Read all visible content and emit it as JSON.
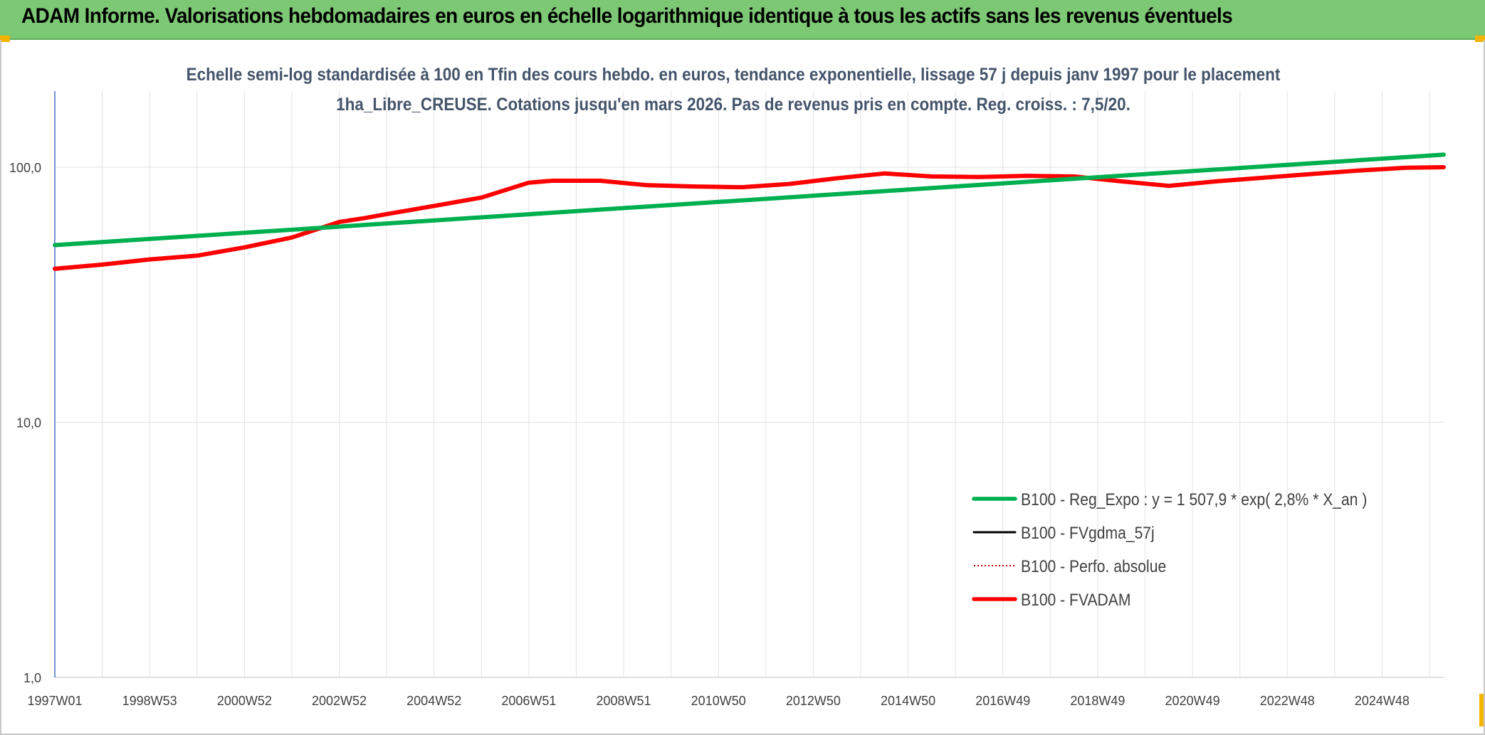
{
  "banner": {
    "title": "ADAM Informe. Valorisations hebdomadaires en euros en échelle logarithmique identique à tous les actifs sans les revenus éventuels"
  },
  "chart_data": {
    "type": "line",
    "title": "Echelle semi-log standardisée à 100 en Tfin des cours hebdo. en euros, tendance exponentielle, lissage 57 j depuis janv 1997 pour le placement 1ha_Libre_CREUSE. Cotations jusqu'en mars 2026. Pas de revenus pris en compte. Reg. croiss. : 7,5/20.",
    "xlabel": "",
    "ylabel": "",
    "y_scale": "log",
    "ylim": [
      1,
      100
    ],
    "xlim": [
      1997.0,
      2026.3
    ],
    "y_ticks": [
      {
        "value": 1,
        "label": "1,0"
      },
      {
        "value": 10,
        "label": "10,0"
      },
      {
        "value": 100,
        "label": "100,0"
      }
    ],
    "x_ticks": [
      {
        "value": 1997.0,
        "label": "1997W01"
      },
      {
        "value": 1999.0,
        "label": "1998W53"
      },
      {
        "value": 2001.0,
        "label": "2000W52"
      },
      {
        "value": 2003.0,
        "label": "2002W52"
      },
      {
        "value": 2005.0,
        "label": "2004W52"
      },
      {
        "value": 2007.0,
        "label": "2006W51"
      },
      {
        "value": 2009.0,
        "label": "2008W51"
      },
      {
        "value": 2011.0,
        "label": "2010W50"
      },
      {
        "value": 2013.0,
        "label": "2012W50"
      },
      {
        "value": 2015.0,
        "label": "2014W50"
      },
      {
        "value": 2017.0,
        "label": "2016W49"
      },
      {
        "value": 2019.0,
        "label": "2018W49"
      },
      {
        "value": 2021.0,
        "label": "2020W49"
      },
      {
        "value": 2023.0,
        "label": "2022W48"
      },
      {
        "value": 2025.0,
        "label": "2024W48"
      }
    ],
    "grid": true,
    "legend_position": "bottom-right",
    "series": [
      {
        "name": "B100 - Reg_Expo : y = 1 507,9 * exp( 2,8% *  X_an )",
        "color": "#00b050",
        "style": "solid",
        "x": [
          1997.0,
          2026.3
        ],
        "y": [
          49.5,
          112.0
        ]
      },
      {
        "name": "B100 - FVgdma_57j",
        "color": "#000000",
        "style": "solid",
        "x": [],
        "y": []
      },
      {
        "name": "B100 - Perfo. absolue",
        "color": "#c00000",
        "style": "dotted",
        "x": [],
        "y": []
      },
      {
        "name": "B100 - FVADAM",
        "color": "#ff0000",
        "style": "solid",
        "x": [
          1997.0,
          1998.0,
          1999.0,
          2000.0,
          2001.0,
          2002.0,
          2003.0,
          2003.5,
          2004.0,
          2005.0,
          2006.0,
          2007.0,
          2007.5,
          2008.5,
          2009.5,
          2010.5,
          2011.5,
          2012.5,
          2013.5,
          2014.5,
          2015.5,
          2016.5,
          2017.5,
          2018.5,
          2019.5,
          2020.5,
          2021.5,
          2022.5,
          2023.5,
          2024.5,
          2025.5,
          2026.3
        ],
        "y": [
          40.0,
          41.5,
          43.5,
          45.0,
          48.5,
          53.0,
          61.0,
          63.0,
          65.5,
          70.5,
          76.0,
          87.0,
          88.5,
          88.5,
          85.0,
          84.0,
          83.5,
          86.0,
          90.5,
          94.5,
          92.0,
          91.5,
          92.5,
          92.0,
          88.0,
          84.5,
          88.0,
          91.0,
          94.0,
          97.0,
          99.5,
          100.0
        ]
      }
    ]
  }
}
